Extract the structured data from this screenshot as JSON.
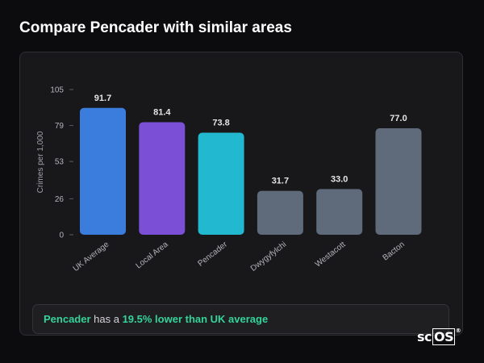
{
  "page": {
    "title": "Compare Pencader with similar areas"
  },
  "summary": {
    "area": "Pencader",
    "text_mid": " has a ",
    "highlight": "19.5% lower than UK average"
  },
  "brand": {
    "prefix": "sc",
    "boxed": "OS",
    "mark": "®"
  },
  "chart_data": {
    "type": "bar",
    "ylabel": "Crimes per 1,000",
    "xlabel": "",
    "title": "",
    "ylim": [
      0,
      105
    ],
    "yticks": [
      0,
      26,
      53,
      79,
      105
    ],
    "grid": false,
    "legend": "none",
    "categories": [
      "UK Average",
      "Local Area",
      "Pencader",
      "Dwygyfylchi",
      "Westacott",
      "Bacton"
    ],
    "values": [
      91.7,
      81.4,
      73.8,
      31.7,
      33.0,
      77.0
    ],
    "value_labels": [
      "91.7",
      "81.4",
      "73.8",
      "31.7",
      "33.0",
      "77.0"
    ],
    "colors": [
      "#3b7ddd",
      "#7b4fd6",
      "#22b8cf",
      "#5f6b7a",
      "#5f6b7a",
      "#5f6b7a"
    ]
  }
}
